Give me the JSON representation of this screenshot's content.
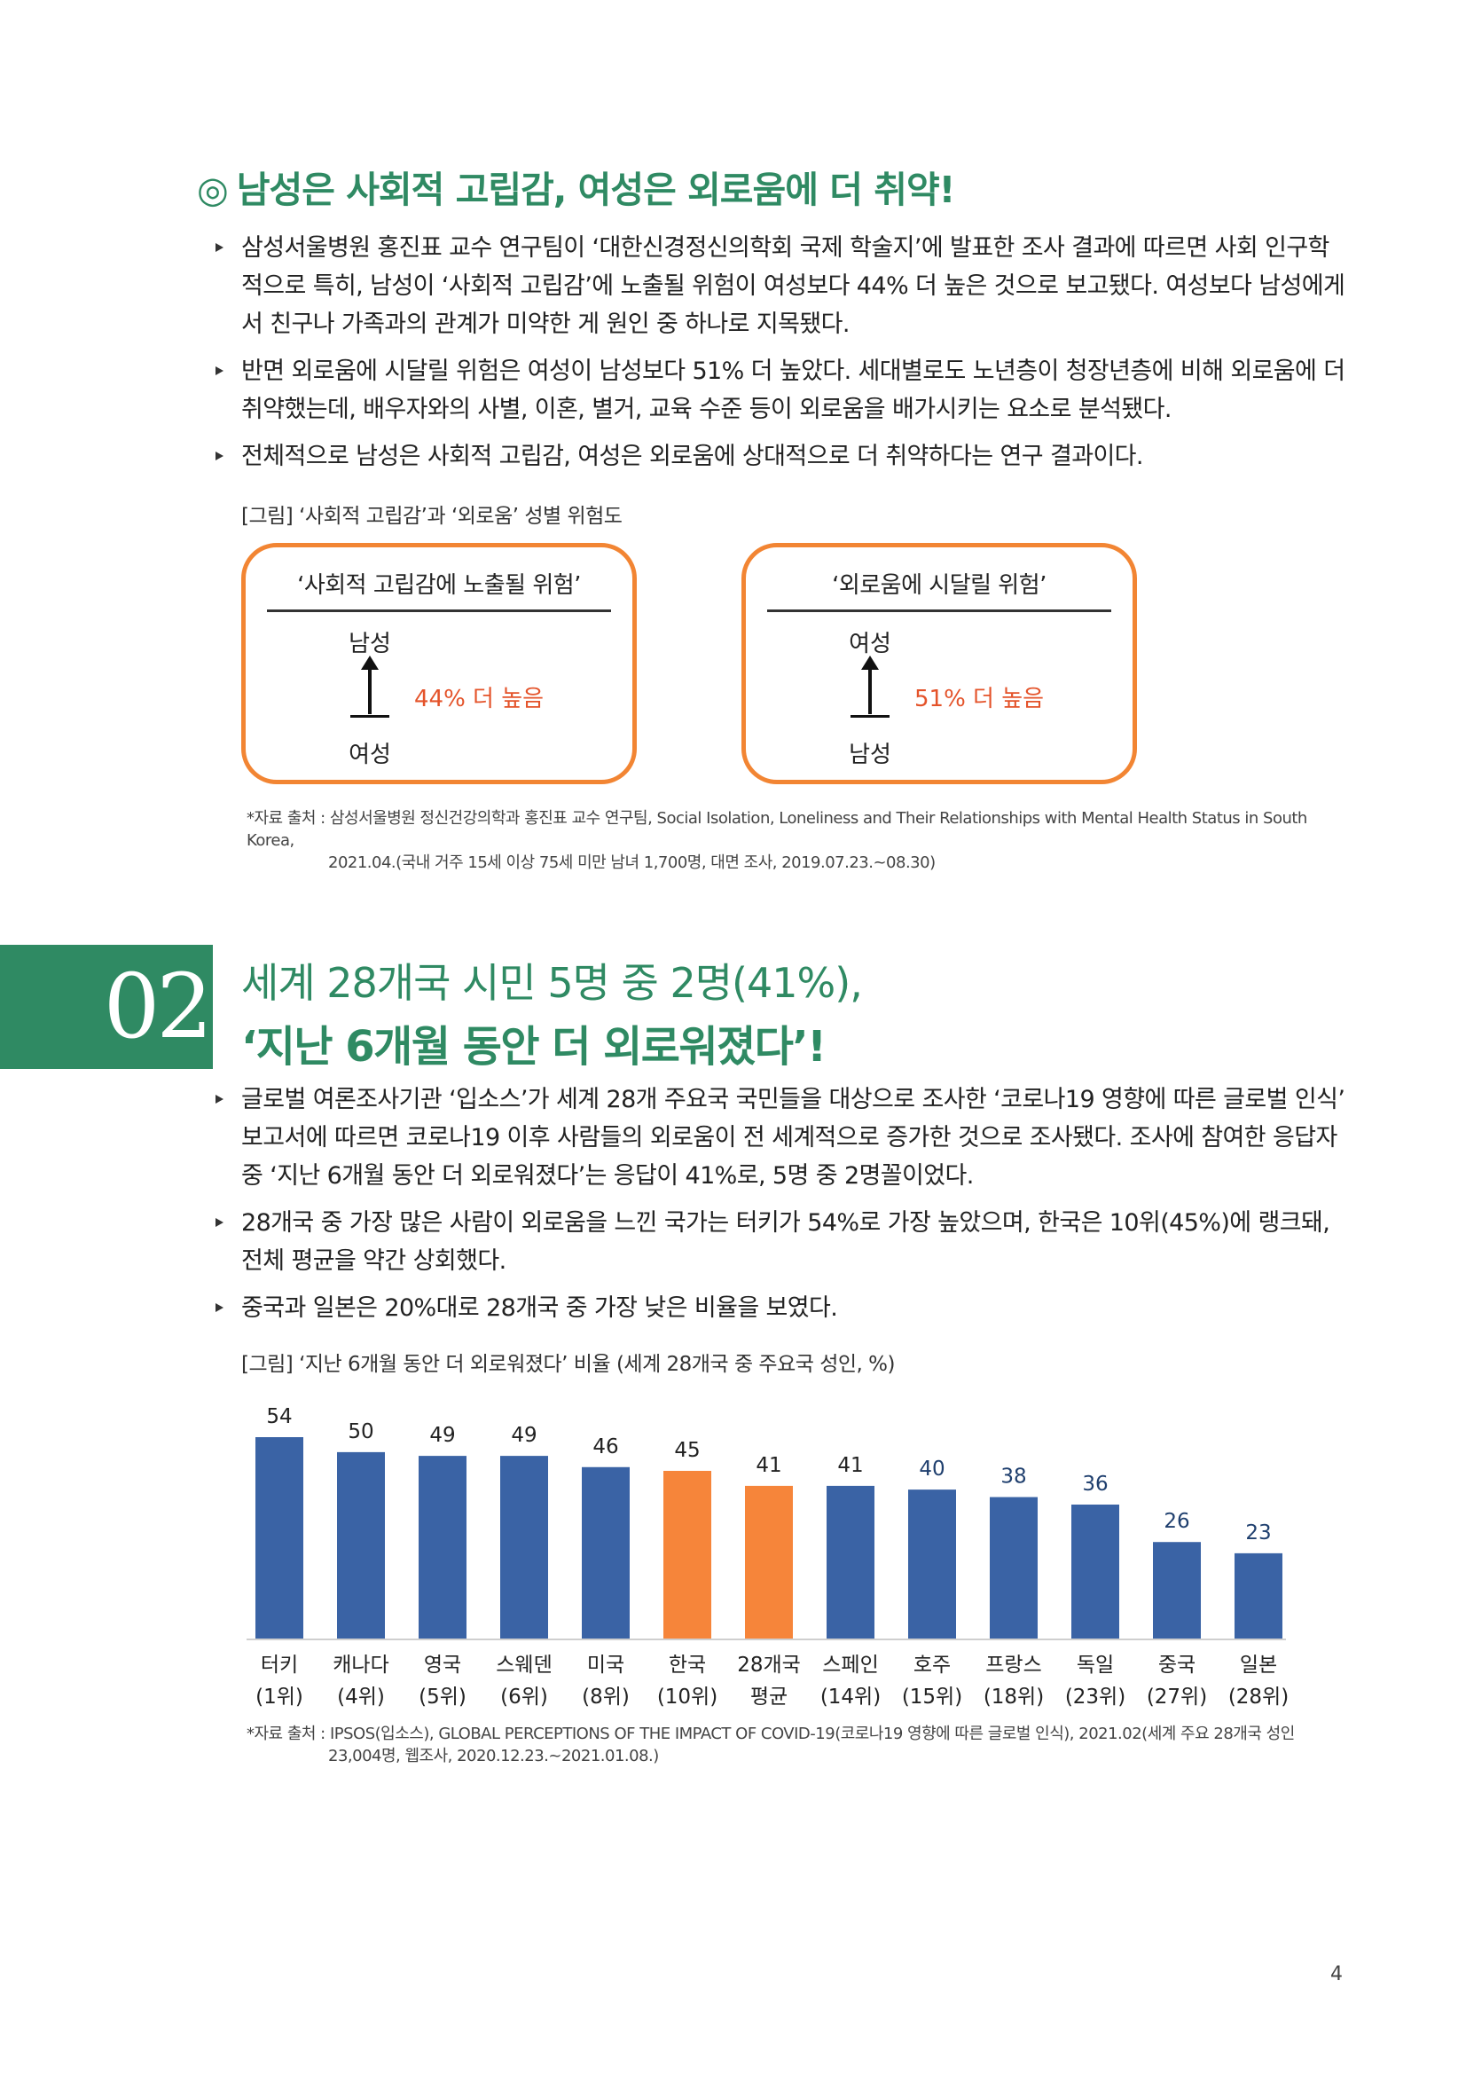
{
  "section1": {
    "mark": "◎",
    "heading": "남성은 사회적 고립감, 여성은 외로움에 더 취약!",
    "bullets": [
      "삼성서울병원 홍진표 교수 연구팀이 ‘대한신경정신의학회 국제 학술지’에 발표한 조사 결과에 따르면 사회 인구학적으로 특히, 남성이 ‘사회적 고립감’에 노출될 위험이 여성보다 44% 더 높은 것으로 보고됐다. 여성보다 남성에게서 친구나 가족과의 관계가 미약한 게 원인 중 하나로 지목됐다.",
      "반면 외로움에 시달릴 위험은 여성이 남성보다 51% 더 높았다. 세대별로도 노년층이 청장년층에 비해 외로움에 더 취약했는데, 배우자와의 사별, 이혼, 별거, 교육 수준 등이 외로움을 배가시키는 요소로 분석됐다.",
      "전체적으로 남성은 사회적 고립감, 여성은 외로움에 상대적으로 더 취약하다는 연구 결과이다."
    ],
    "figure_caption": "[그림] ‘사회적 고립감’과 ‘외로움’ 성별 위험도",
    "boxes": [
      {
        "title": "‘사회적 고립감에 노출될 위험’",
        "top": "남성",
        "bottom": "여성",
        "pct": "44% 더 높음"
      },
      {
        "title": "‘외로움에 시달릴 위험’",
        "top": "여성",
        "bottom": "남성",
        "pct": "51% 더 높음"
      }
    ],
    "source_line1": "*자료 출처 : 삼성서울병원 정신건강의학과 홍진표 교수 연구팀, Social Isolation, Loneliness and Their Relationships with Mental Health Status in South Korea,",
    "source_line2": "2021.04.(국내 거주 15세 이상 75세 미만 남녀 1,700명, 대면 조사, 2019.07.23.~08.30)"
  },
  "section2": {
    "number": "02",
    "heading_line1": "세계 28개국 시민 5명 중 2명(41%),",
    "heading_line2": "‘지난 6개월 동안 더 외로워졌다’!",
    "bullets": [
      "글로벌 여론조사기관 ‘입소스’가 세계 28개 주요국 국민들을 대상으로 조사한 ‘코로나19 영향에 따른 글로벌 인식’ 보고서에 따르면 코로나19 이후 사람들의 외로움이 전 세계적으로 증가한 것으로 조사됐다. 조사에 참여한 응답자 중 ‘지난 6개월 동안 더 외로워졌다’는 응답이 41%로, 5명 중 2명꼴이었다.",
      "28개국 중 가장 많은 사람이 외로움을 느낀 국가는 터키가 54%로 가장 높았으며, 한국은 10위(45%)에 랭크돼, 전체 평균을 약간 상회했다.",
      "중국과 일본은 20%대로 28개국 중 가장 낮은 비율을 보였다."
    ],
    "figure_caption": "[그림] ‘지난 6개월 동안 더 외로워졌다’ 비율 (세계 28개국 중 주요국 성인, %)",
    "source_line1": "*자료 출처 : IPSOS(입소스), GLOBAL PERCEPTIONS OF THE IMPACT OF COVID-19(코로나19 영향에 따른 글로벌 인식), 2021.02(세계 주요 28개국 성인",
    "source_line2": "23,004명, 웹조사, 2020.12.23.~2021.01.08.)"
  },
  "chart_data": {
    "type": "bar",
    "categories": [
      "터키",
      "캐나다",
      "영국",
      "스웨덴",
      "미국",
      "한국",
      "28개국",
      "스페인",
      "호주",
      "프랑스",
      "독일",
      "중국",
      "일본"
    ],
    "ranks": [
      "(1위)",
      "(4위)",
      "(5위)",
      "(6위)",
      "(8위)",
      "(10위)",
      "평균",
      "(14위)",
      "(15위)",
      "(18위)",
      "(23위)",
      "(27위)",
      "(28위)"
    ],
    "values": [
      54,
      50,
      49,
      49,
      46,
      45,
      41,
      41,
      40,
      38,
      36,
      26,
      23
    ],
    "highlight": [
      5,
      6
    ],
    "colors": {
      "default": "#3a63a5",
      "highlight": "#f6853a"
    },
    "ylim": [
      0,
      60
    ],
    "grid": false,
    "title": "",
    "xlabel": "",
    "ylabel": ""
  },
  "page_number": "4"
}
